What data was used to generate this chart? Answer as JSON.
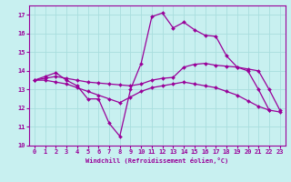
{
  "bg_color": "#c8f0f0",
  "line_color": "#990099",
  "grid_color": "#a8dede",
  "xlabel": "Windchill (Refroidissement éolien,°C)",
  "xlim": [
    -0.5,
    23.5
  ],
  "ylim": [
    10,
    17.5
  ],
  "yticks": [
    10,
    11,
    12,
    13,
    14,
    15,
    16,
    17
  ],
  "xticks": [
    0,
    1,
    2,
    3,
    4,
    5,
    6,
    7,
    8,
    9,
    10,
    11,
    12,
    13,
    14,
    15,
    16,
    17,
    18,
    19,
    20,
    21,
    22,
    23
  ],
  "series1_x": [
    0,
    1,
    2,
    3,
    4,
    5,
    6,
    7,
    8,
    9,
    10,
    11,
    12,
    13,
    14,
    15,
    16,
    17,
    18,
    19,
    20,
    21,
    22
  ],
  "series1_y": [
    13.5,
    13.7,
    13.9,
    13.5,
    13.2,
    12.5,
    12.5,
    11.2,
    10.5,
    13.0,
    14.4,
    16.9,
    17.1,
    16.3,
    16.6,
    16.2,
    15.9,
    15.85,
    14.8,
    14.2,
    14.0,
    13.0,
    11.9
  ],
  "series2_x": [
    0,
    1,
    2,
    3,
    4,
    5,
    6,
    7,
    8,
    9,
    10,
    11,
    12,
    13,
    14,
    15,
    16,
    17,
    18,
    19,
    20,
    21,
    22,
    23
  ],
  "series2_y": [
    13.5,
    13.6,
    13.7,
    13.6,
    13.5,
    13.4,
    13.35,
    13.3,
    13.25,
    13.2,
    13.3,
    13.5,
    13.6,
    13.65,
    14.2,
    14.35,
    14.4,
    14.3,
    14.25,
    14.2,
    14.1,
    14.0,
    13.0,
    11.9
  ],
  "series3_x": [
    0,
    1,
    2,
    3,
    4,
    5,
    6,
    7,
    8,
    9,
    10,
    11,
    12,
    13,
    14,
    15,
    16,
    17,
    18,
    19,
    20,
    21,
    22,
    23
  ],
  "series3_y": [
    13.5,
    13.5,
    13.4,
    13.3,
    13.1,
    12.9,
    12.7,
    12.5,
    12.3,
    12.6,
    12.9,
    13.1,
    13.2,
    13.3,
    13.4,
    13.3,
    13.2,
    13.1,
    12.9,
    12.7,
    12.4,
    12.1,
    11.9,
    11.8
  ]
}
